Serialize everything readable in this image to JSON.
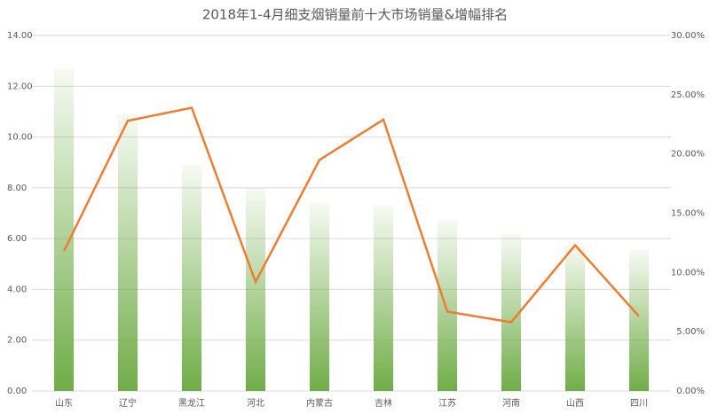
{
  "chart_data": {
    "type": "bar-line",
    "title": "2018年1-4月细支烟销量前十大市场销量&增幅排名",
    "categories": [
      "山东",
      "辽宁",
      "黑龙江",
      "河北",
      "内蒙古",
      "吉林",
      "江苏",
      "河南",
      "山西",
      "四川"
    ],
    "series": [
      {
        "type": "bar",
        "color": "#70ad47",
        "values": [
          12.7,
          10.9,
          8.9,
          8.0,
          7.4,
          7.3,
          6.75,
          6.2,
          5.75,
          5.55
        ]
      },
      {
        "type": "line",
        "color": "#ed7d31",
        "axis": "y2",
        "values": [
          11.8,
          22.8,
          23.9,
          9.2,
          19.5,
          22.9,
          6.7,
          5.8,
          12.3,
          6.3
        ]
      }
    ],
    "ylim": [
      0,
      14
    ],
    "yticks": [
      {
        "value": 0,
        "label": "0.00"
      },
      {
        "value": 2,
        "label": "2.00"
      },
      {
        "value": 4,
        "label": "4.00"
      },
      {
        "value": 6,
        "label": "6.00"
      },
      {
        "value": 8,
        "label": "8.00"
      },
      {
        "value": 10,
        "label": "10.00"
      },
      {
        "value": 12,
        "label": "12.00"
      },
      {
        "value": 14,
        "label": "14.00"
      }
    ],
    "y2lim": [
      0,
      30
    ],
    "y2ticks": [
      {
        "value": 0,
        "label": "0.00%"
      },
      {
        "value": 5,
        "label": "5.00%"
      },
      {
        "value": 10,
        "label": "10.00%"
      },
      {
        "value": 15,
        "label": "15.00%"
      },
      {
        "value": 20,
        "label": "20.00%"
      },
      {
        "value": 25,
        "label": "25.00%"
      },
      {
        "value": 30,
        "label": "30.00%"
      }
    ],
    "grid": true
  }
}
